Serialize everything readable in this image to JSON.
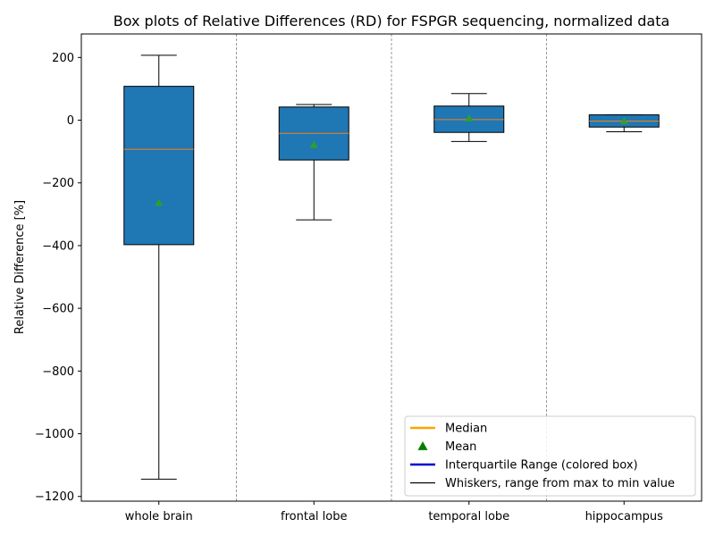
{
  "chart_data": {
    "type": "box",
    "title": "Box plots of Relative Differences (RD) for FSPGR sequencing, normalized data",
    "xlabel": "",
    "ylabel": "Relative Difference [%]",
    "ylim": [
      -1215,
      275
    ],
    "yticks": [
      200,
      0,
      -200,
      -400,
      -600,
      -800,
      -1000,
      -1200
    ],
    "ytick_labels": [
      "200",
      "0",
      "−200",
      "−400",
      "−600",
      "−800",
      "−1000",
      "−1200"
    ],
    "categories": [
      "whole brain",
      "frontal lobe",
      "temporal lobe",
      "hippocampus"
    ],
    "boxes": [
      {
        "label": "whole brain",
        "whisker_low": -1145,
        "q1": -397,
        "median": -93,
        "q3": 108,
        "whisker_high": 207,
        "mean": -263
      },
      {
        "label": "frontal lobe",
        "whisker_low": -318,
        "q1": -127,
        "median": -42,
        "q3": 42,
        "whisker_high": 50,
        "mean": -78
      },
      {
        "label": "temporal lobe",
        "whisker_low": -68,
        "q1": -39,
        "median": 2,
        "q3": 45,
        "whisker_high": 85,
        "mean": 6
      },
      {
        "label": "hippocampus",
        "whisker_low": -37,
        "q1": -22,
        "median": -3,
        "q3": 17,
        "whisker_high": 17,
        "mean": -3
      }
    ],
    "grid": false,
    "category_separators": true,
    "legend_position": "lower-right",
    "legend": [
      {
        "label": "Median",
        "symbol": "line",
        "color": "#ffa500"
      },
      {
        "label": "Mean",
        "symbol": "triangle",
        "color": "#008000"
      },
      {
        "label": "Interquartile Range (colored box)",
        "symbol": "line",
        "color": "#0000cd"
      },
      {
        "label": "Whiskers, range from max to min value",
        "symbol": "thin-line",
        "color": "#000000"
      }
    ],
    "colors": {
      "box_fill": "#1f77b4",
      "median_line": "#ff7f0e",
      "mean_marker": "#2ca02c",
      "separator": "#808080"
    }
  }
}
